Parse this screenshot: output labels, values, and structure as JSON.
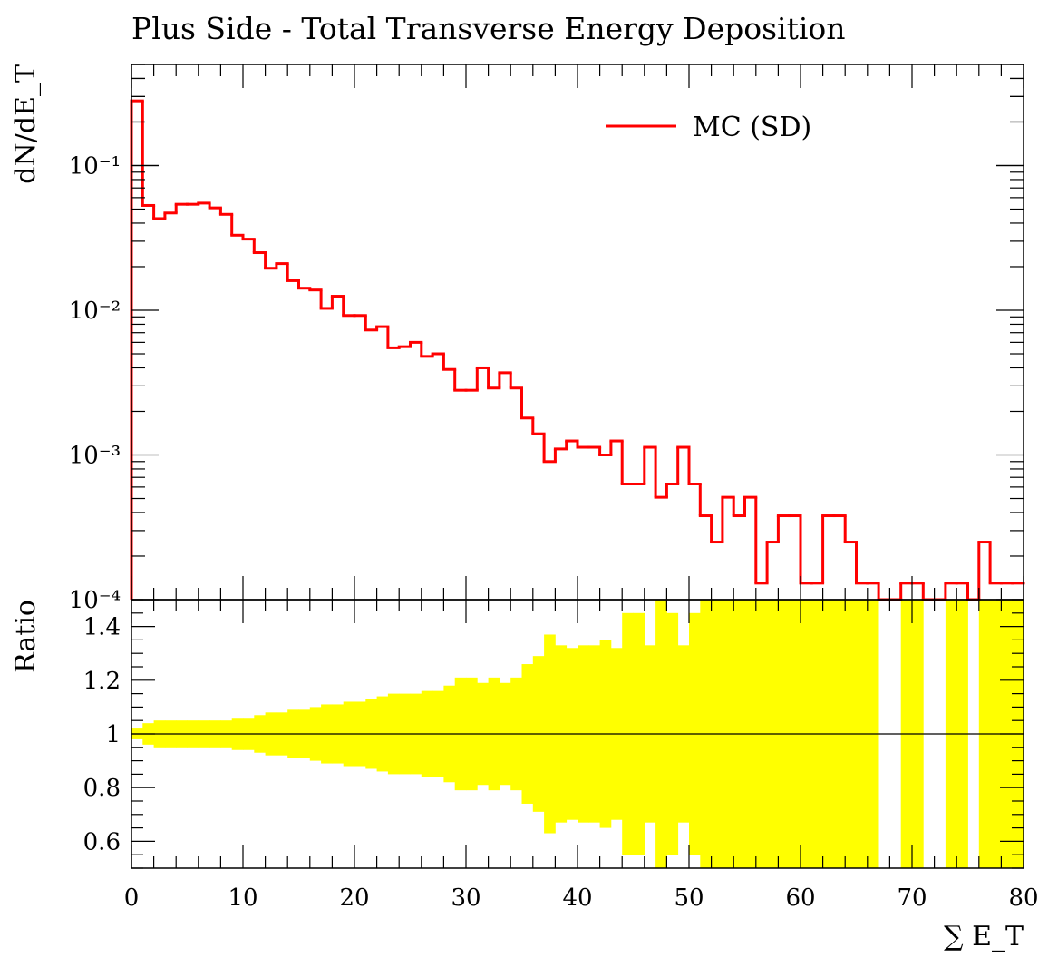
{
  "title": "Plus Side - Total Transverse Energy Deposition",
  "colors": {
    "mc_line": "#ff0000",
    "ratio_band": "#ffff00",
    "axis": "#000000"
  },
  "chart_data": [
    {
      "type": "line",
      "title": "Plus Side - Total Transverse Energy Deposition",
      "ylabel": "dN/dE_T",
      "y_scale": "log",
      "ylim": [
        0.0001,
        0.5
      ],
      "xlim": [
        0,
        80
      ],
      "y_tick_labels": [
        "10⁻¹",
        "10⁻²",
        "10⁻³",
        "10⁻⁴"
      ],
      "y_tick_values": [
        0.1,
        0.01,
        0.001,
        0.0001
      ],
      "legend": {
        "placement": "top-right",
        "entries": [
          "MC (SD)"
        ]
      },
      "series": [
        {
          "name": "MC (SD)",
          "bin_width": 1,
          "bin_start": 0,
          "values": [
            0.28,
            0.053,
            0.043,
            0.047,
            0.054,
            0.054,
            0.055,
            0.051,
            0.046,
            0.033,
            0.031,
            0.025,
            0.0195,
            0.021,
            0.016,
            0.0142,
            0.0138,
            0.0103,
            0.0125,
            0.0092,
            0.0092,
            0.0073,
            0.0077,
            0.0055,
            0.0056,
            0.006,
            0.0048,
            0.005,
            0.0039,
            0.0028,
            0.0028,
            0.004,
            0.0029,
            0.0037,
            0.0029,
            0.0018,
            0.0014,
            0.0009,
            0.0011,
            0.00125,
            0.00113,
            0.00113,
            0.001,
            0.00125,
            0.00063,
            0.00063,
            0.00113,
            0.00051,
            0.00063,
            0.00113,
            0.00063,
            0.00038,
            0.00025,
            0.00051,
            0.00038,
            0.00051,
            0.00013,
            0.00025,
            0.00038,
            0.00038,
            0.00013,
            0.00013,
            0.00038,
            0.00038,
            0.00025,
            0.00013,
            0.00013,
            0.0,
            0.0,
            0.00013,
            0.00013,
            0.0,
            0.0,
            0.00013,
            0.00013,
            0.0,
            0.00025,
            0.00013,
            0.00013,
            0.00013
          ]
        }
      ]
    },
    {
      "type": "area",
      "ylabel": "Ratio",
      "xlabel": "∑ E_T",
      "xlim": [
        0,
        80
      ],
      "ylim": [
        0.5,
        1.5
      ],
      "reference_line": 1.0,
      "x_tick_labels": [
        "0",
        "10",
        "20",
        "30",
        "40",
        "50",
        "60",
        "70",
        "80"
      ],
      "x_tick_values": [
        0,
        10,
        20,
        30,
        40,
        50,
        60,
        70,
        80
      ],
      "y_tick_labels": [
        "0.6",
        "0.8",
        "1",
        "1.2",
        "1.4"
      ],
      "y_tick_values": [
        0.6,
        0.8,
        1.0,
        1.2,
        1.4
      ],
      "series": [
        {
          "name": "",
          "bin_width": 1,
          "bin_start": 0,
          "upper": [
            1.02,
            1.04,
            1.05,
            1.05,
            1.05,
            1.05,
            1.05,
            1.05,
            1.05,
            1.06,
            1.06,
            1.07,
            1.08,
            1.08,
            1.09,
            1.09,
            1.1,
            1.11,
            1.11,
            1.12,
            1.12,
            1.13,
            1.14,
            1.15,
            1.15,
            1.15,
            1.16,
            1.16,
            1.18,
            1.21,
            1.21,
            1.19,
            1.21,
            1.19,
            1.21,
            1.26,
            1.29,
            1.37,
            1.33,
            1.32,
            1.33,
            1.33,
            1.35,
            1.32,
            1.45,
            1.45,
            1.33,
            1.5,
            1.45,
            1.33,
            1.45,
            1.5,
            1.5,
            1.5,
            1.5,
            1.5,
            1.5,
            1.5,
            1.5,
            1.5,
            1.5,
            1.5,
            1.5,
            1.5,
            1.5,
            1.5,
            1.5,
            null,
            null,
            1.5,
            1.5,
            null,
            null,
            1.5,
            1.5,
            null,
            1.5,
            1.5,
            1.5,
            1.5
          ],
          "lower": [
            0.98,
            0.96,
            0.95,
            0.95,
            0.95,
            0.95,
            0.95,
            0.95,
            0.95,
            0.94,
            0.94,
            0.93,
            0.92,
            0.92,
            0.91,
            0.91,
            0.9,
            0.89,
            0.89,
            0.88,
            0.88,
            0.87,
            0.86,
            0.85,
            0.85,
            0.85,
            0.84,
            0.84,
            0.82,
            0.79,
            0.79,
            0.81,
            0.79,
            0.81,
            0.79,
            0.74,
            0.71,
            0.63,
            0.67,
            0.68,
            0.67,
            0.67,
            0.65,
            0.68,
            0.55,
            0.55,
            0.67,
            0.5,
            0.55,
            0.67,
            0.55,
            0.5,
            0.5,
            0.5,
            0.5,
            0.5,
            0.5,
            0.5,
            0.5,
            0.5,
            0.5,
            0.5,
            0.5,
            0.5,
            0.5,
            0.5,
            0.5,
            null,
            null,
            0.5,
            0.5,
            null,
            null,
            0.5,
            0.5,
            null,
            0.5,
            0.5,
            0.5,
            0.5
          ]
        }
      ]
    }
  ]
}
